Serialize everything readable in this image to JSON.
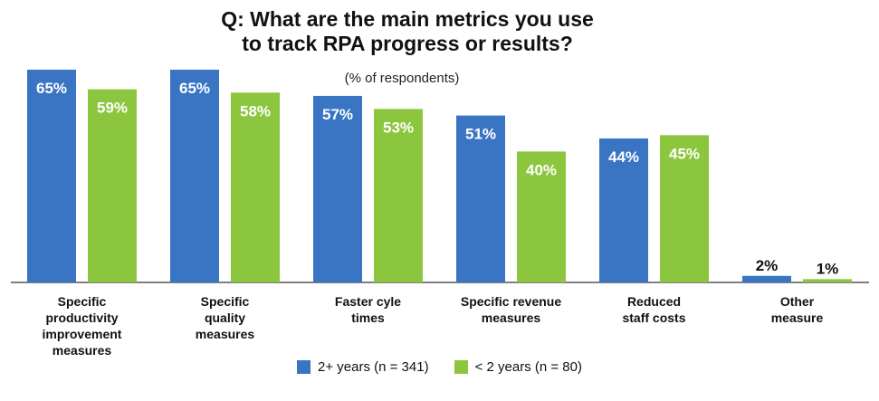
{
  "chart_data": {
    "type": "bar",
    "title_lines": [
      "Q: What are the main metrics you use",
      "to track RPA progress or results?"
    ],
    "subtitle": "(% of respondents)",
    "value_suffix": "%",
    "ylim": [
      0,
      65
    ],
    "grid": false,
    "legend_position": "bottom-center",
    "categories": [
      [
        "Specific",
        "productivity",
        "improvement",
        "measures"
      ],
      [
        "Specific",
        "quality",
        "measures"
      ],
      [
        "Faster cyle",
        "times"
      ],
      [
        "Specific revenue",
        "measures"
      ],
      [
        "Reduced",
        "staff costs"
      ],
      [
        "Other",
        "measure"
      ]
    ],
    "series": [
      {
        "name": "2+ years (n = 341)",
        "color": "#3a75c4",
        "values": [
          65,
          65,
          57,
          51,
          44,
          2
        ]
      },
      {
        "name": "< 2 years (n = 80)",
        "color": "#8cc63f",
        "values": [
          59,
          58,
          53,
          40,
          45,
          1
        ]
      }
    ]
  }
}
